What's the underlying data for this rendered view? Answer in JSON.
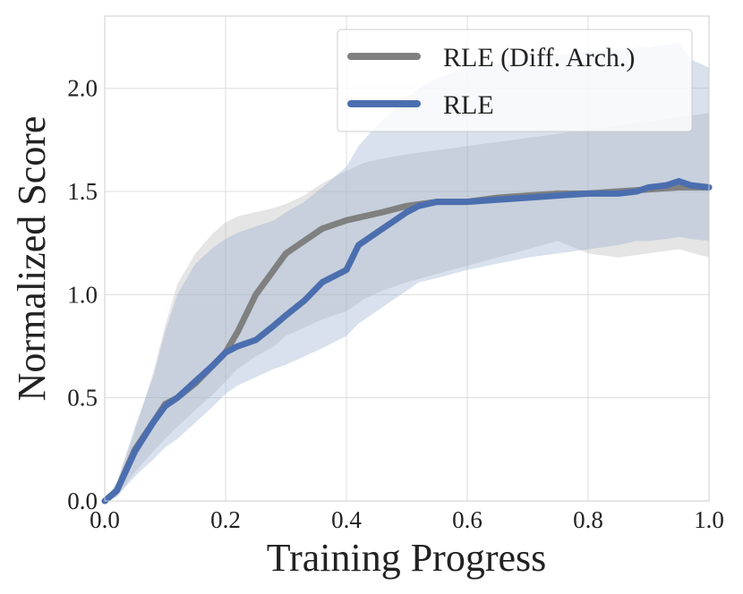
{
  "chart_data": {
    "type": "line",
    "xlabel": "Training Progress",
    "ylabel": "Normalized Score",
    "xlim": [
      0.0,
      1.0
    ],
    "ylim": [
      0.0,
      2.35
    ],
    "xticks": [
      "0.0",
      "0.2",
      "0.4",
      "0.6",
      "0.8",
      "1.0"
    ],
    "yticks": [
      "0.0",
      "0.5",
      "1.0",
      "1.5",
      "2.0"
    ],
    "grid": true,
    "legend_position": "top-right",
    "colors": {
      "grid": "#dddddd",
      "frame": "#cccccc"
    },
    "series": [
      {
        "name": "RLE (Diff. Arch.)",
        "color": "#808080",
        "band_color": "#c0c0c0",
        "x": [
          0.0,
          0.02,
          0.05,
          0.08,
          0.1,
          0.12,
          0.15,
          0.18,
          0.2,
          0.22,
          0.25,
          0.28,
          0.3,
          0.33,
          0.36,
          0.4,
          0.43,
          0.46,
          0.5,
          0.55,
          0.6,
          0.65,
          0.7,
          0.75,
          0.8,
          0.85,
          0.9,
          0.95,
          1.0
        ],
        "y": [
          0.0,
          0.05,
          0.25,
          0.38,
          0.47,
          0.5,
          0.57,
          0.66,
          0.72,
          0.82,
          1.0,
          1.12,
          1.2,
          1.26,
          1.32,
          1.36,
          1.38,
          1.4,
          1.43,
          1.45,
          1.45,
          1.47,
          1.48,
          1.49,
          1.49,
          1.5,
          1.51,
          1.52,
          1.52
        ],
        "upper": [
          0.0,
          0.08,
          0.34,
          0.62,
          0.85,
          1.05,
          1.2,
          1.3,
          1.35,
          1.38,
          1.4,
          1.42,
          1.44,
          1.48,
          1.54,
          1.6,
          1.64,
          1.66,
          1.68,
          1.7,
          1.72,
          1.74,
          1.76,
          1.78,
          1.8,
          1.82,
          1.84,
          1.86,
          1.88
        ],
        "lower": [
          0.0,
          0.02,
          0.14,
          0.24,
          0.3,
          0.36,
          0.44,
          0.52,
          0.58,
          0.64,
          0.7,
          0.75,
          0.8,
          0.84,
          0.88,
          0.92,
          0.98,
          1.02,
          1.06,
          1.1,
          1.14,
          1.18,
          1.22,
          1.26,
          1.2,
          1.18,
          1.2,
          1.22,
          1.18
        ]
      },
      {
        "name": "RLE",
        "color": "#4b6eaf",
        "band_color": "#90a8cc",
        "x": [
          0.0,
          0.02,
          0.05,
          0.08,
          0.1,
          0.12,
          0.15,
          0.18,
          0.2,
          0.22,
          0.25,
          0.28,
          0.3,
          0.33,
          0.36,
          0.4,
          0.42,
          0.45,
          0.48,
          0.5,
          0.52,
          0.55,
          0.6,
          0.65,
          0.7,
          0.75,
          0.8,
          0.85,
          0.88,
          0.9,
          0.93,
          0.95,
          0.97,
          1.0
        ],
        "y": [
          0.0,
          0.05,
          0.24,
          0.38,
          0.46,
          0.5,
          0.58,
          0.66,
          0.72,
          0.75,
          0.78,
          0.85,
          0.9,
          0.97,
          1.06,
          1.12,
          1.24,
          1.3,
          1.36,
          1.4,
          1.43,
          1.45,
          1.45,
          1.46,
          1.47,
          1.48,
          1.49,
          1.49,
          1.5,
          1.52,
          1.53,
          1.55,
          1.53,
          1.52
        ],
        "upper": [
          0.0,
          0.09,
          0.36,
          0.6,
          0.82,
          1.0,
          1.15,
          1.23,
          1.27,
          1.3,
          1.33,
          1.36,
          1.4,
          1.45,
          1.52,
          1.62,
          1.72,
          1.82,
          1.9,
          1.96,
          2.0,
          2.05,
          2.1,
          2.12,
          2.15,
          2.16,
          2.18,
          2.18,
          2.2,
          2.2,
          2.21,
          2.22,
          2.14,
          2.1
        ],
        "lower": [
          0.0,
          0.02,
          0.12,
          0.2,
          0.26,
          0.3,
          0.38,
          0.46,
          0.52,
          0.56,
          0.6,
          0.64,
          0.66,
          0.7,
          0.74,
          0.8,
          0.86,
          0.92,
          0.98,
          1.02,
          1.06,
          1.08,
          1.12,
          1.15,
          1.18,
          1.2,
          1.22,
          1.24,
          1.26,
          1.26,
          1.27,
          1.28,
          1.27,
          1.26
        ]
      }
    ]
  }
}
